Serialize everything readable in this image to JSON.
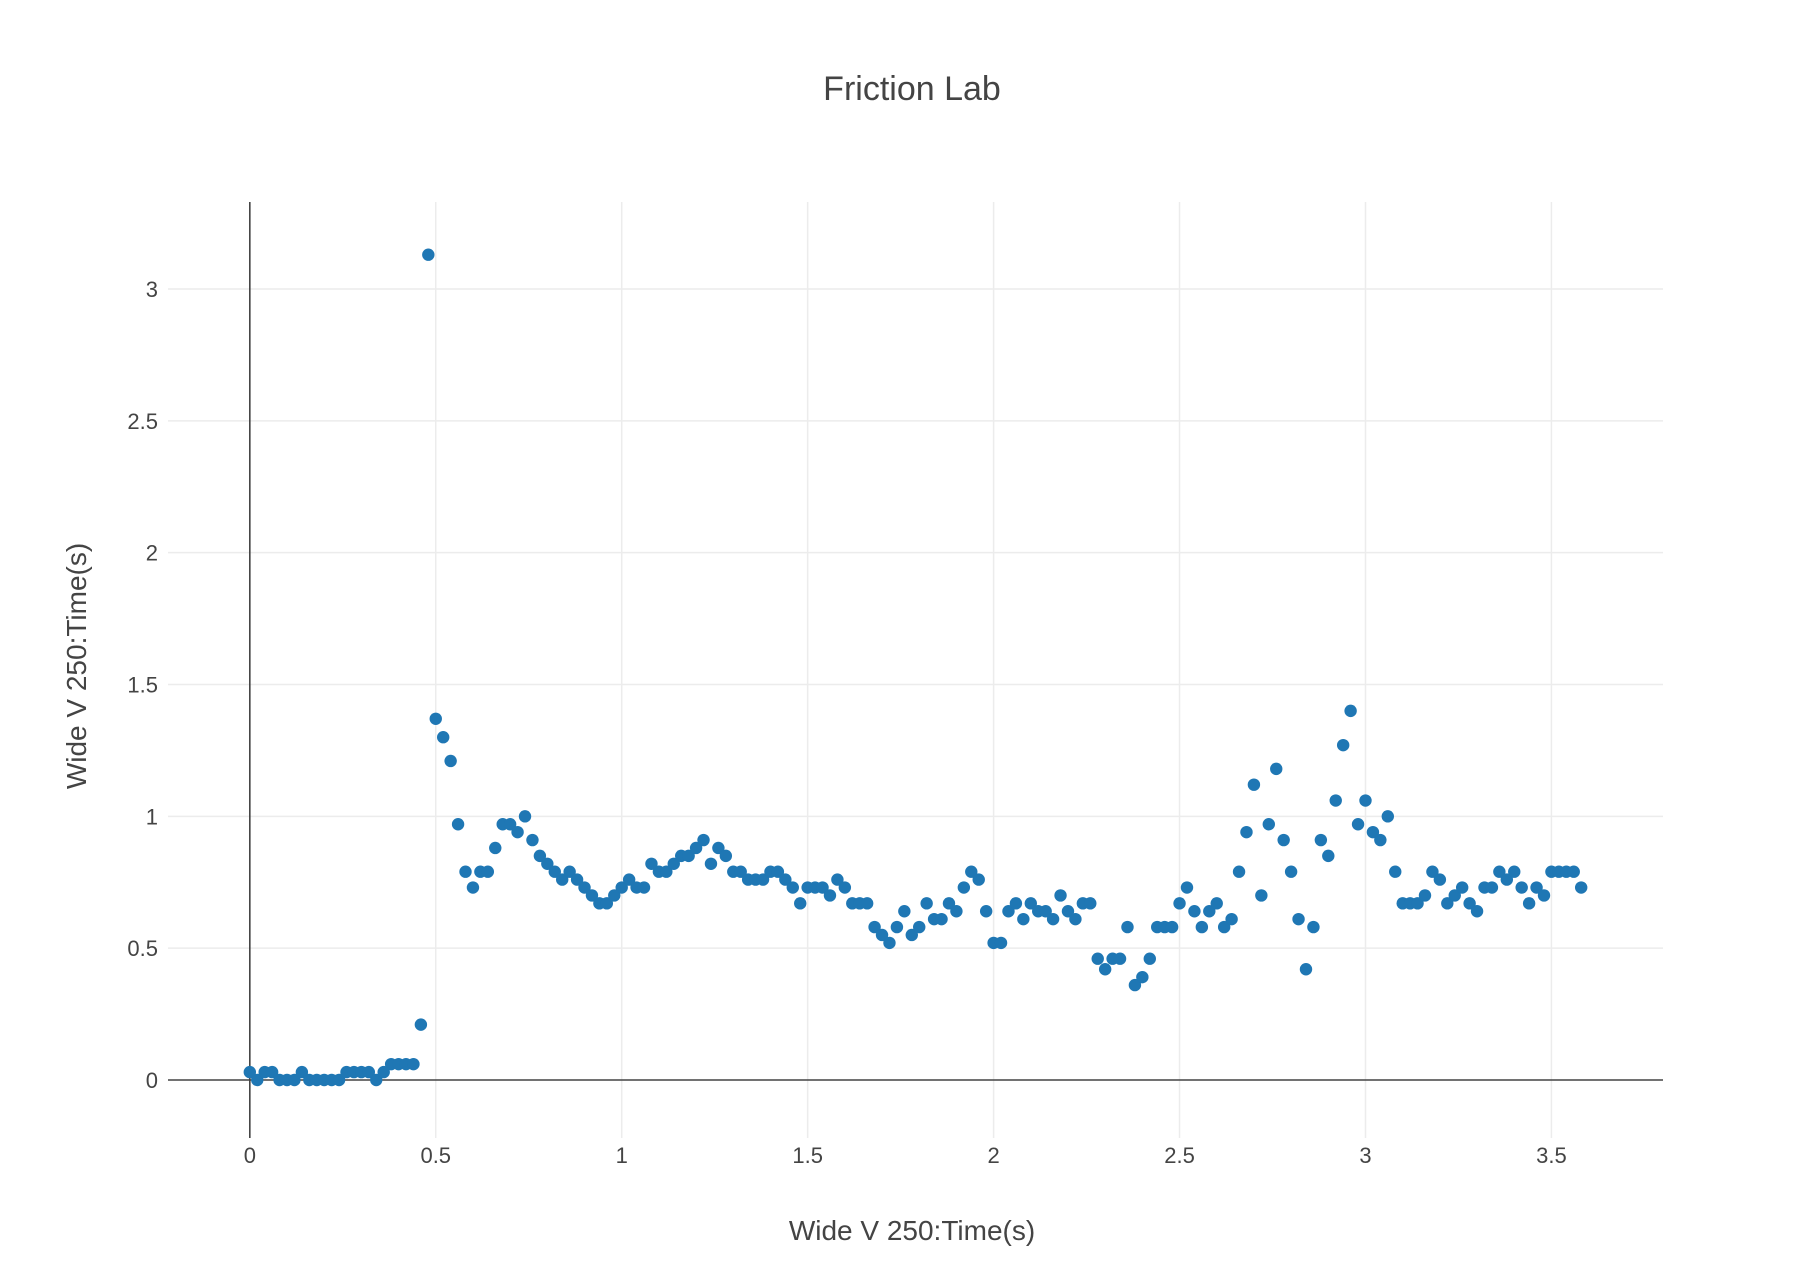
{
  "chart_data": {
    "type": "scatter",
    "title": "Friction Lab",
    "xlabel": "Wide V 250:Time(s)",
    "ylabel": "Wide V 250:Time(s)",
    "xlim": [
      -0.22,
      3.8
    ],
    "ylim": [
      -0.22,
      3.33
    ],
    "x_ticks": [
      0,
      0.5,
      1,
      1.5,
      2,
      2.5,
      3,
      3.5
    ],
    "x_tick_labels": [
      "0",
      "0.5",
      "1",
      "1.5",
      "2",
      "2.5",
      "3",
      "3.5"
    ],
    "y_ticks": [
      0,
      0.5,
      1,
      1.5,
      2,
      2.5,
      3
    ],
    "y_tick_labels": [
      "0",
      "0.5",
      "1",
      "1.5",
      "2",
      "2.5",
      "3"
    ],
    "grid": true,
    "marker_color": "#1f77b4",
    "series": [
      {
        "x": [
          0,
          0.02,
          0.04,
          0.06,
          0.08,
          0.1,
          0.12,
          0.14,
          0.16,
          0.18,
          0.2,
          0.22,
          0.24,
          0.26,
          0.28,
          0.3,
          0.32,
          0.34,
          0.36,
          0.38,
          0.4,
          0.42,
          0.44,
          0.46,
          0.48,
          0.5,
          0.52,
          0.54,
          0.56,
          0.58,
          0.6,
          0.62,
          0.64,
          0.66,
          0.68,
          0.7,
          0.72,
          0.74,
          0.76,
          0.78,
          0.8,
          0.82,
          0.84,
          0.86,
          0.88,
          0.9,
          0.92,
          0.94,
          0.96,
          0.98,
          1,
          1.02,
          1.04,
          1.06,
          1.08,
          1.1,
          1.12,
          1.14,
          1.16,
          1.18,
          1.2,
          1.22,
          1.24,
          1.26,
          1.28,
          1.3,
          1.32,
          1.34,
          1.36,
          1.38,
          1.4,
          1.42,
          1.44,
          1.46,
          1.48,
          1.5,
          1.52,
          1.54,
          1.56,
          1.58,
          1.6,
          1.62,
          1.64,
          1.66,
          1.68,
          1.7,
          1.72,
          1.74,
          1.76,
          1.78,
          1.8,
          1.82,
          1.84,
          1.86,
          1.88,
          1.9,
          1.92,
          1.94,
          1.96,
          1.98,
          2,
          2.02,
          2.04,
          2.06,
          2.08,
          2.1,
          2.12,
          2.14,
          2.16,
          2.18,
          2.2,
          2.22,
          2.24,
          2.26,
          2.28,
          2.3,
          2.32,
          2.34,
          2.36,
          2.38,
          2.4,
          2.42,
          2.44,
          2.46,
          2.48,
          2.5,
          2.52,
          2.54,
          2.56,
          2.58,
          2.6,
          2.62,
          2.64,
          2.66,
          2.68,
          2.7,
          2.72,
          2.74,
          2.76,
          2.78,
          2.8,
          2.82,
          2.84,
          2.86,
          2.88,
          2.9,
          2.92,
          2.94,
          2.96,
          2.98,
          3,
          3.02,
          3.04,
          3.06,
          3.08,
          3.1,
          3.12,
          3.14,
          3.16,
          3.18,
          3.2,
          3.22,
          3.24,
          3.26,
          3.28,
          3.3,
          3.32,
          3.34,
          3.36,
          3.38,
          3.4,
          3.42,
          3.44,
          3.46,
          3.48,
          3.5,
          3.52,
          3.54,
          3.56,
          3.58
        ],
        "y": [
          0.03,
          0,
          0.03,
          0.03,
          0,
          0,
          0,
          0.03,
          0,
          0,
          0,
          0,
          0,
          0.03,
          0.03,
          0.03,
          0.03,
          0,
          0.03,
          0.06,
          0.06,
          0.06,
          0.06,
          0.21,
          3.13,
          1.37,
          1.3,
          1.21,
          0.97,
          0.79,
          0.73,
          0.79,
          0.79,
          0.88,
          0.97,
          0.97,
          0.94,
          1,
          0.91,
          0.85,
          0.82,
          0.79,
          0.76,
          0.79,
          0.76,
          0.73,
          0.7,
          0.67,
          0.67,
          0.7,
          0.73,
          0.76,
          0.73,
          0.73,
          0.82,
          0.79,
          0.79,
          0.82,
          0.85,
          0.85,
          0.88,
          0.91,
          0.82,
          0.88,
          0.85,
          0.79,
          0.79,
          0.76,
          0.76,
          0.76,
          0.79,
          0.79,
          0.76,
          0.73,
          0.67,
          0.73,
          0.73,
          0.73,
          0.7,
          0.76,
          0.73,
          0.67,
          0.67,
          0.67,
          0.58,
          0.55,
          0.52,
          0.58,
          0.64,
          0.55,
          0.58,
          0.67,
          0.61,
          0.61,
          0.67,
          0.64,
          0.73,
          0.79,
          0.76,
          0.64,
          0.52,
          0.52,
          0.64,
          0.67,
          0.61,
          0.67,
          0.64,
          0.64,
          0.61,
          0.7,
          0.64,
          0.61,
          0.67,
          0.67,
          0.46,
          0.42,
          0.46,
          0.46,
          0.58,
          0.36,
          0.39,
          0.46,
          0.58,
          0.58,
          0.58,
          0.67,
          0.73,
          0.64,
          0.58,
          0.64,
          0.67,
          0.58,
          0.61,
          0.79,
          0.94,
          1.12,
          0.7,
          0.97,
          1.18,
          0.91,
          0.79,
          0.61,
          0.42,
          0.58,
          0.91,
          0.85,
          1.06,
          1.27,
          1.4,
          0.97,
          1.06,
          0.94,
          0.91,
          1,
          0.79,
          0.67,
          0.67,
          0.67,
          0.7,
          0.79,
          0.76,
          0.67,
          0.7,
          0.73,
          0.67,
          0.64,
          0.73,
          0.73,
          0.79,
          0.76,
          0.79,
          0.73,
          0.67,
          0.73,
          0.7,
          0.79,
          0.79,
          0.79,
          0.79,
          0.73
        ]
      }
    ]
  }
}
